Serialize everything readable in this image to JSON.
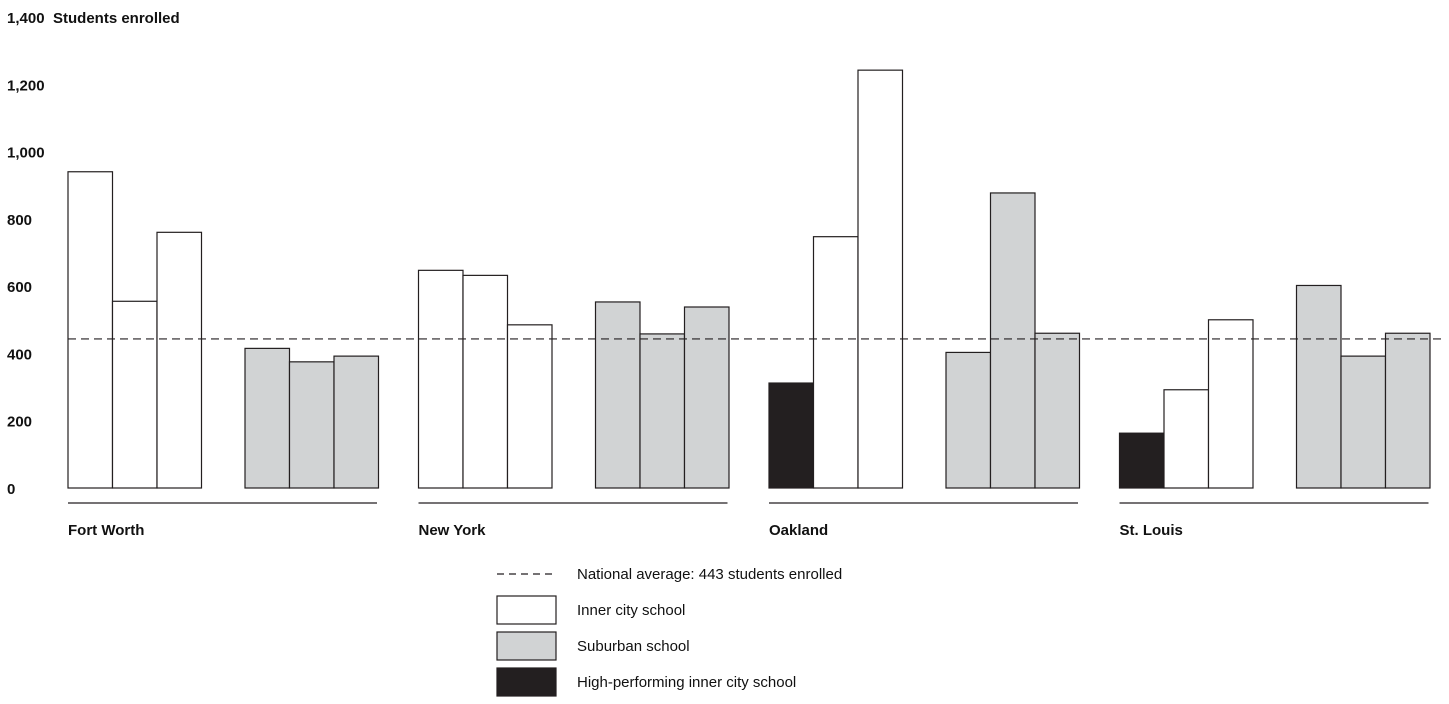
{
  "chart_data": {
    "type": "bar",
    "ylabel": "Students enrolled",
    "ylim": [
      0,
      1400
    ],
    "yticks": [
      "0",
      "200",
      "400",
      "600",
      "800",
      "1,000",
      "1,200",
      "1,400"
    ],
    "grid": false,
    "reference_line": {
      "value": 443,
      "label": "National average: 443 students enrolled"
    },
    "groups": [
      {
        "city": "Fort Worth",
        "bars": [
          {
            "type": "inner",
            "value": 940
          },
          {
            "type": "inner",
            "value": 555
          },
          {
            "type": "inner",
            "value": 760
          },
          {
            "type": "suburban",
            "value": 415
          },
          {
            "type": "suburban",
            "value": 375
          },
          {
            "type": "suburban",
            "value": 392
          }
        ]
      },
      {
        "city": "New York",
        "bars": [
          {
            "type": "inner",
            "value": 647
          },
          {
            "type": "inner",
            "value": 632
          },
          {
            "type": "inner",
            "value": 485
          },
          {
            "type": "suburban",
            "value": 553
          },
          {
            "type": "suburban",
            "value": 458
          },
          {
            "type": "suburban",
            "value": 538
          }
        ]
      },
      {
        "city": "Oakland",
        "bars": [
          {
            "type": "high",
            "value": 312
          },
          {
            "type": "inner",
            "value": 747
          },
          {
            "type": "inner",
            "value": 1242
          },
          {
            "type": "suburban",
            "value": 403
          },
          {
            "type": "suburban",
            "value": 877
          },
          {
            "type": "suburban",
            "value": 460
          }
        ]
      },
      {
        "city": "St. Louis",
        "bars": [
          {
            "type": "high",
            "value": 163
          },
          {
            "type": "inner",
            "value": 292
          },
          {
            "type": "inner",
            "value": 500
          },
          {
            "type": "suburban",
            "value": 602
          },
          {
            "type": "suburban",
            "value": 392
          },
          {
            "type": "suburban",
            "value": 460
          }
        ]
      }
    ],
    "legend": [
      {
        "key": "average",
        "label": "National average: 443 students enrolled"
      },
      {
        "key": "inner",
        "label": "Inner city school"
      },
      {
        "key": "suburban",
        "label": "Suburban school"
      },
      {
        "key": "high",
        "label": "High-performing inner city school"
      }
    ],
    "colors": {
      "inner": "#ffffff",
      "suburban": "#d1d3d4",
      "high": "#231f20",
      "stroke": "#231f20"
    }
  }
}
